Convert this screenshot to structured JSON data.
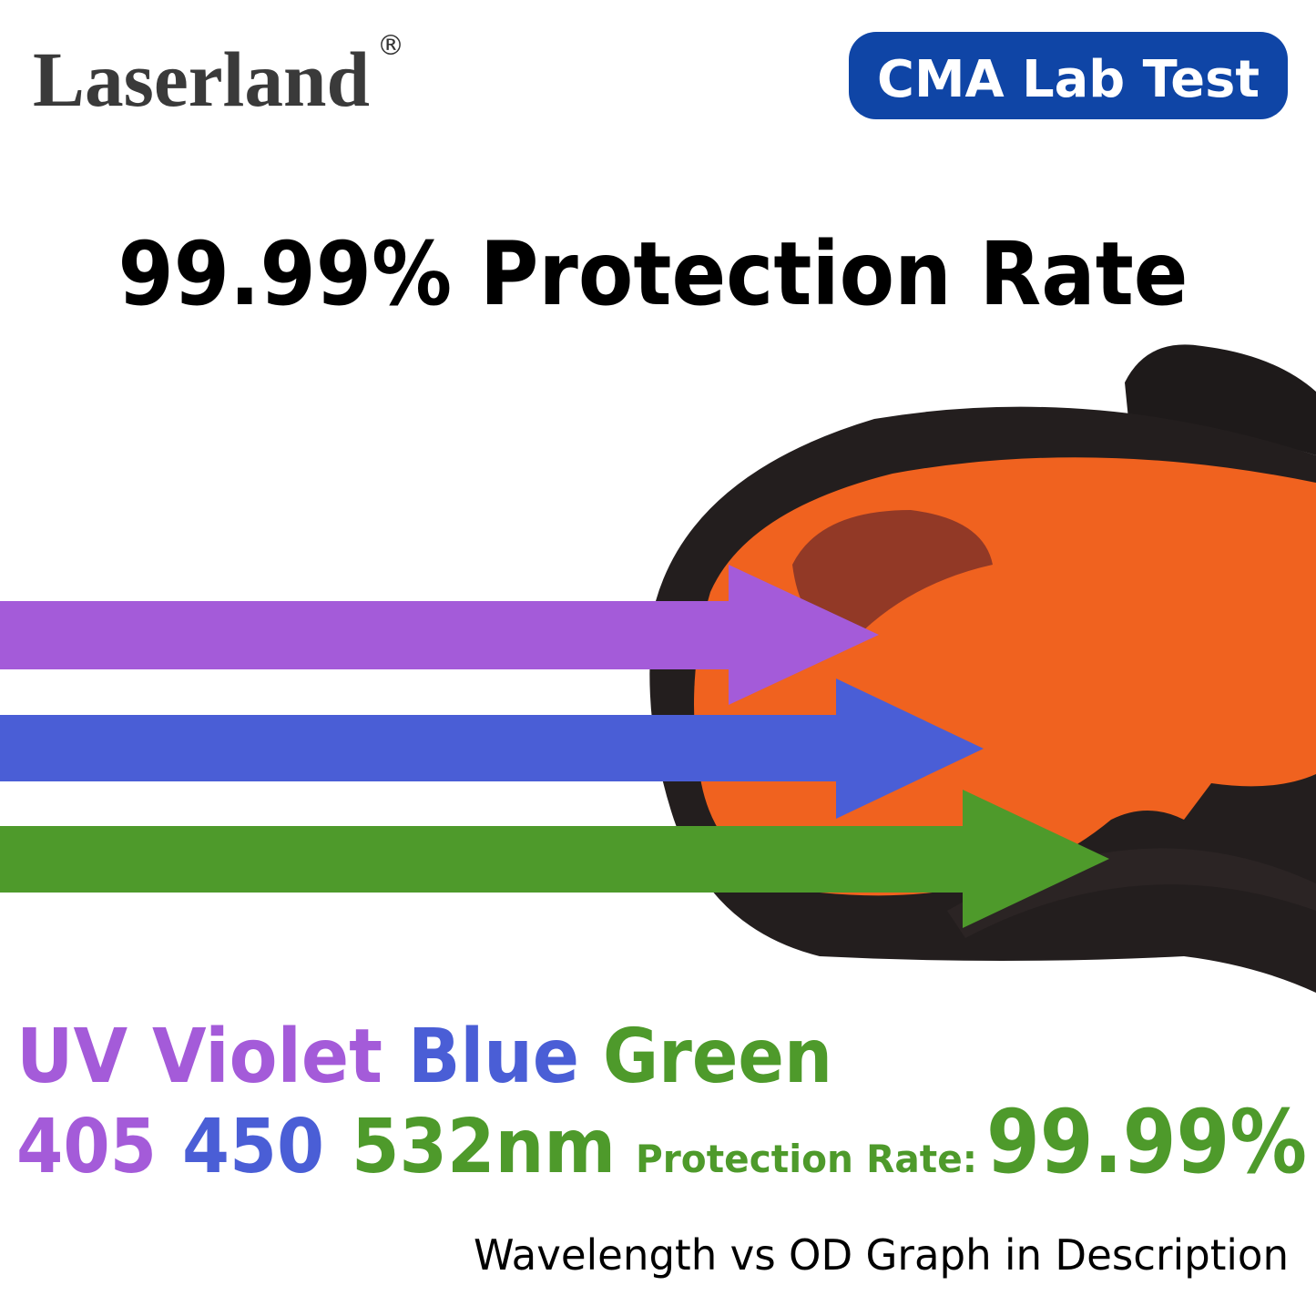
{
  "header": {
    "logo": "Laserland",
    "registered": "®",
    "badge": "CMA Lab Test"
  },
  "headline": "99.99% Protection Rate",
  "spectrum": {
    "names": [
      "UV Violet",
      "Blue",
      "Green"
    ],
    "wavelengths": [
      "405",
      "450",
      "532nm"
    ],
    "rate_label": "Protection Rate:",
    "rate": "99.99%"
  },
  "footnote": "Wavelength vs OD Graph in Description"
}
